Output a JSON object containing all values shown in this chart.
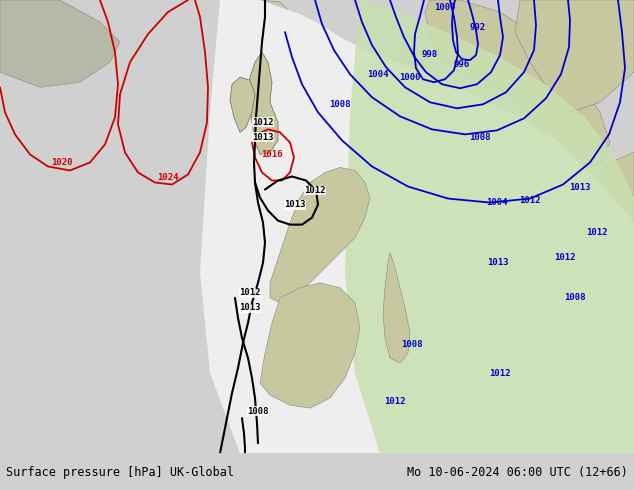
{
  "title_left": "Surface pressure [hPa] UK-Global",
  "title_right": "Mo 10-06-2024 06:00 UTC (12+66)",
  "background_land": "#c8c8a0",
  "background_sea": "#a8aeb8",
  "forecast_region_white": "#eeeeee",
  "forecast_region_green": "#c8e0b0",
  "contour_blue": "#0000cc",
  "contour_red": "#cc0000",
  "contour_black": "#000000",
  "bottom_bar_color": "#d0d0d0",
  "figsize": [
    6.34,
    4.9
  ],
  "dpi": 100
}
